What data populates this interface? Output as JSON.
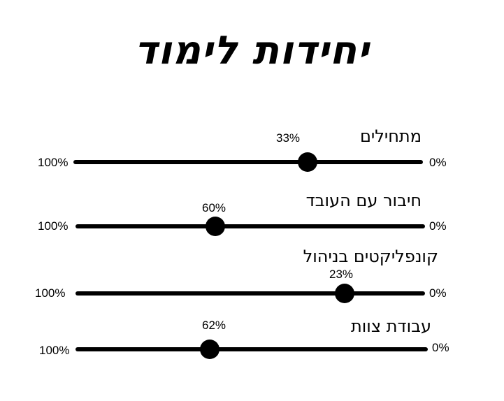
{
  "title": "יחידות לימוד",
  "sliders": [
    {
      "label": "מתחילים",
      "value": "33%",
      "min_label": "0%",
      "max_label": "100%",
      "level": 0.33
    },
    {
      "label": "חיבור עם העובד",
      "value": "60%",
      "min_label": "0%",
      "max_label": "100%",
      "level": 0.6
    },
    {
      "label": "קונפליקטים בניהול",
      "value": "23%",
      "min_label": "0%",
      "max_label": "100%",
      "level": 0.23
    },
    {
      "label": "עבודת צוות",
      "value": "62%",
      "min_label": "0%",
      "max_label": "100%",
      "level": 0.62
    }
  ]
}
